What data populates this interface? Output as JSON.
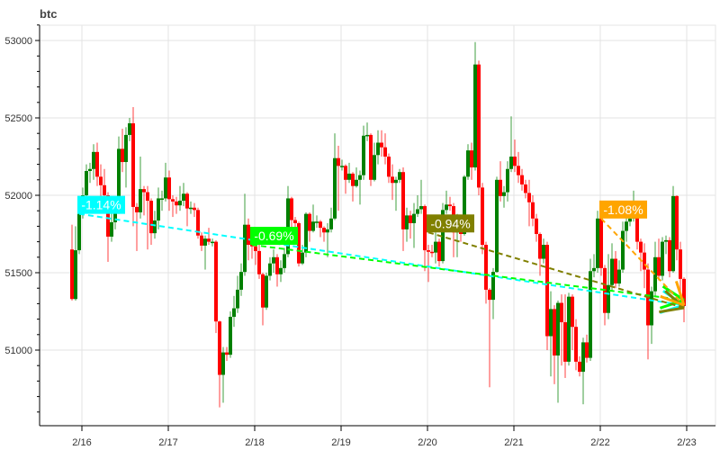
{
  "chart_data": {
    "type": "candlestick",
    "title": "btc",
    "xlabel": "",
    "ylabel": "",
    "ylim": [
      50560,
      53100
    ],
    "grid": true,
    "y_ticks": [
      51000,
      51500,
      52000,
      52500,
      53000
    ],
    "x_ticks": [
      "2/16",
      "2/17",
      "2/18",
      "2/19",
      "2/20",
      "2/21",
      "2/22",
      "2/23"
    ],
    "colors": {
      "up": "#008000",
      "down": "#ff0000"
    },
    "first_open": 51650,
    "close": [
      51330,
      51645,
      51880,
      52000,
      52157,
      52170,
      52280,
      52120,
      52065,
      52000,
      51733,
      51826,
      51900,
      52300,
      52215,
      52390,
      52465,
      51925,
      51890,
      52040,
      52020,
      51965,
      51755,
      51837,
      51980,
      51980,
      52115,
      51975,
      51960,
      51935,
      51965,
      52010,
      51915,
      51920,
      51905,
      51740,
      51675,
      51720,
      51700,
      51700,
      51185,
      50840,
      50985,
      50970,
      51215,
      51270,
      51390,
      51505,
      51810,
      51680,
      51670,
      51640,
      51490,
      51275,
      51480,
      51560,
      51600,
      51490,
      51530,
      51620,
      51980,
      51840,
      51820,
      51560,
      51630,
      51880,
      51770,
      51830,
      51830,
      51790,
      51760,
      51780,
      51850,
      52240,
      52190,
      52190,
      52100,
      52140,
      52060,
      52100,
      52130,
      52385,
      52390,
      52100,
      52260,
      52340,
      52310,
      52250,
      52120,
      52080,
      52100,
      52150,
      51780,
      51870,
      51820,
      51880,
      51910,
      51930,
      51645,
      51635,
      51630,
      51700,
      51575,
      51905,
      51940,
      51930,
      51760,
      51840,
      51750,
      52120,
      52290,
      52180,
      52845,
      52050,
      51680,
      51390,
      51325,
      51505,
      52100,
      51995,
      52020,
      52170,
      52250,
      52190,
      52130,
      52070,
      52015,
      51955,
      51850,
      51750,
      51590,
      51680,
      51090,
      51265,
      50965,
      51305,
      51180,
      50925,
      51345,
      51150,
      50925,
      50860,
      51050,
      50950,
      51510,
      51530,
      51850,
      51530,
      51240,
      51420,
      51590,
      51430,
      51520,
      51770,
      51830,
      51850,
      51870,
      51700,
      51630,
      51520,
      51160,
      51380,
      51600,
      51480,
      51700,
      51710,
      51510,
      51995,
      51650,
      51460,
      51285
    ],
    "high": [
      51810,
      51800,
      51950,
      52050,
      52200,
      52210,
      52330,
      52340,
      52200,
      52170,
      52020,
      51900,
      51950,
      52380,
      52430,
      52440,
      52500,
      52570,
      51950,
      52250,
      52060,
      52060,
      51980,
      51900,
      52050,
      52030,
      52210,
      52160,
      52000,
      51990,
      52060,
      52080,
      52020,
      51960,
      51950,
      51920,
      51760,
      51740,
      51790,
      51720,
      51710,
      51190,
      51020,
      51020,
      51250,
      51350,
      51480,
      51560,
      52010,
      51850,
      51720,
      51700,
      51750,
      51500,
      51500,
      51600,
      51650,
      51620,
      51580,
      51660,
      52060,
      51990,
      51860,
      51830,
      51680,
      51890,
      51890,
      51940,
      51870,
      51840,
      51800,
      51820,
      51920,
      52400,
      52320,
      52230,
      52200,
      52210,
      52150,
      52180,
      52160,
      52450,
      52470,
      52400,
      52340,
      52420,
      52420,
      52400,
      52270,
      52200,
      52120,
      52170,
      52180,
      51920,
      51900,
      51950,
      52000,
      52100,
      51940,
      51680,
      51680,
      51760,
      51720,
      51950,
      52030,
      51990,
      51950,
      51880,
      51850,
      52130,
      52330,
      52340,
      52990,
      52870,
      52080,
      51700,
      51400,
      51530,
      52120,
      52220,
      52060,
      52220,
      52510,
      52360,
      52280,
      52170,
      52100,
      52100,
      52000,
      51880,
      51760,
      51720,
      51700,
      51380,
      51290,
      51320,
      51360,
      51360,
      51370,
      51360,
      51200,
      50960,
      51080,
      51100,
      51590,
      51620,
      51900,
      51860,
      51550,
      51620,
      51690,
      51640,
      51580,
      51830,
      51900,
      51960,
      52030,
      51900,
      51720,
      51690,
      51560,
      51410,
      51700,
      51720,
      51730,
      51740,
      51730,
      52060,
      52000,
      51700,
      51470
    ],
    "low": [
      51320,
      51320,
      51620,
      51850,
      51980,
      52080,
      52100,
      52060,
      51950,
      51900,
      51570,
      51700,
      51780,
      51880,
      52150,
      52050,
      52350,
      51800,
      51640,
      51850,
      51870,
      51650,
      51680,
      51720,
      51780,
      51900,
      51960,
      51900,
      51860,
      51880,
      51900,
      51930,
      51800,
      51880,
      51860,
      51720,
      51640,
      51520,
      51680,
      51670,
      51110,
      50630,
      50660,
      50930,
      50950,
      51150,
      51240,
      51350,
      51480,
      51580,
      51590,
      51550,
      51460,
      51160,
      51260,
      51450,
      51500,
      51410,
      51440,
      51500,
      51600,
      51780,
      51790,
      51540,
      51550,
      51600,
      51700,
      51760,
      51790,
      51730,
      51700,
      51600,
      51760,
      51840,
      51900,
      52160,
      52010,
      52080,
      51960,
      52050,
      51940,
      52100,
      52350,
      52060,
      52090,
      52200,
      52250,
      52200,
      52080,
      51970,
      51900,
      52080,
      51640,
      51700,
      51720,
      51660,
      51860,
      51880,
      51510,
      51440,
      51600,
      51560,
      51540,
      51560,
      51880,
      51900,
      51600,
      51600,
      51700,
      51740,
      52100,
      52100,
      52160,
      52000,
      51620,
      51300,
      50760,
      51200,
      51500,
      51960,
      51920,
      51960,
      52150,
      52150,
      52080,
      52030,
      51980,
      51800,
      51800,
      51700,
      51480,
      51560,
      51000,
      50830,
      50780,
      50660,
      50900,
      50820,
      50900,
      51000,
      50870,
      50830,
      50650,
      50920,
      50930,
      51470,
      51500,
      51480,
      51160,
      51200,
      51380,
      51400,
      51410,
      51500,
      51700,
      51800,
      51830,
      51650,
      51510,
      51400,
      50940,
      51040,
      51350,
      51450,
      51450,
      51620,
      51470,
      51500,
      51580,
      51380,
      51180
    ],
    "trend_lines": [
      {
        "label": "-1.14%",
        "color": "#00ffff",
        "start_candle": 2,
        "start_price": 51880,
        "end_price": 51290
      },
      {
        "label": "-0.69%",
        "color": "#00ff00",
        "start_candle": 50,
        "start_price": 51680,
        "end_price": 51323
      },
      {
        "label": "-0.94%",
        "color": "#808000",
        "start_candle": 99,
        "start_price": 51760,
        "end_price": 51273
      },
      {
        "label": "-1.08%",
        "color": "#ffa500",
        "start_candle": 147,
        "start_price": 51850,
        "end_price": 51290
      }
    ]
  }
}
